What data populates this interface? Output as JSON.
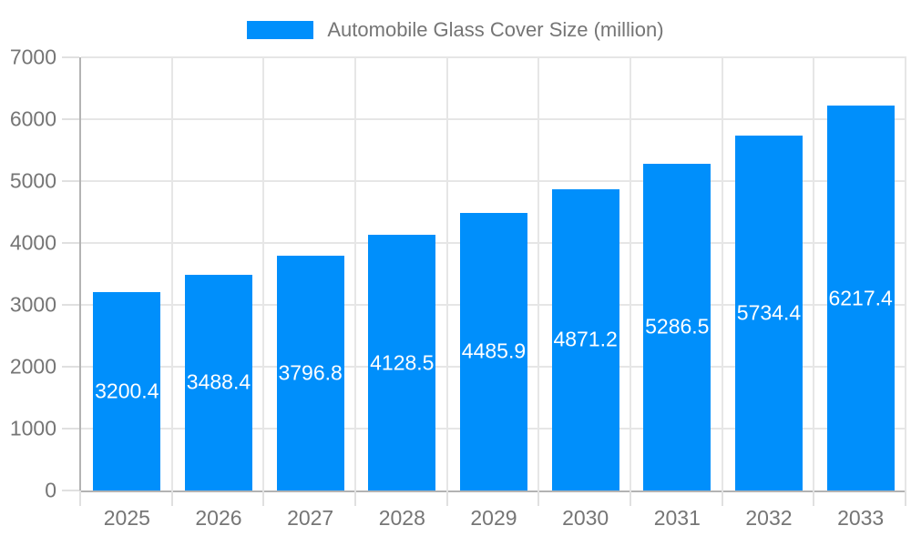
{
  "chart_data": {
    "type": "bar",
    "title": "Automobile Glass Cover Size (million)",
    "categories": [
      "2025",
      "2026",
      "2027",
      "2028",
      "2029",
      "2030",
      "2031",
      "2032",
      "2033"
    ],
    "values": [
      3200.4,
      3488.4,
      3796.8,
      4128.5,
      4485.9,
      4871.2,
      5286.5,
      5734.4,
      6217.4
    ],
    "series": [
      {
        "name": "Automobile Glass Cover Size (million)",
        "values": [
          3200.4,
          3488.4,
          3796.8,
          4128.5,
          4485.9,
          4871.2,
          5286.5,
          5734.4,
          6217.4
        ]
      }
    ],
    "xlabel": "",
    "ylabel": "",
    "ylim": [
      0,
      7000
    ],
    "y_ticks": [
      0,
      1000,
      2000,
      3000,
      4000,
      5000,
      6000,
      7000
    ],
    "grid": true,
    "legend_position": "top",
    "bar_color": "#008FFB",
    "bar_label_color": "#ffffff",
    "axis_text_color": "#757575",
    "grid_color": "#e6e6e6",
    "axis_line_color": "#b3b3b3"
  }
}
